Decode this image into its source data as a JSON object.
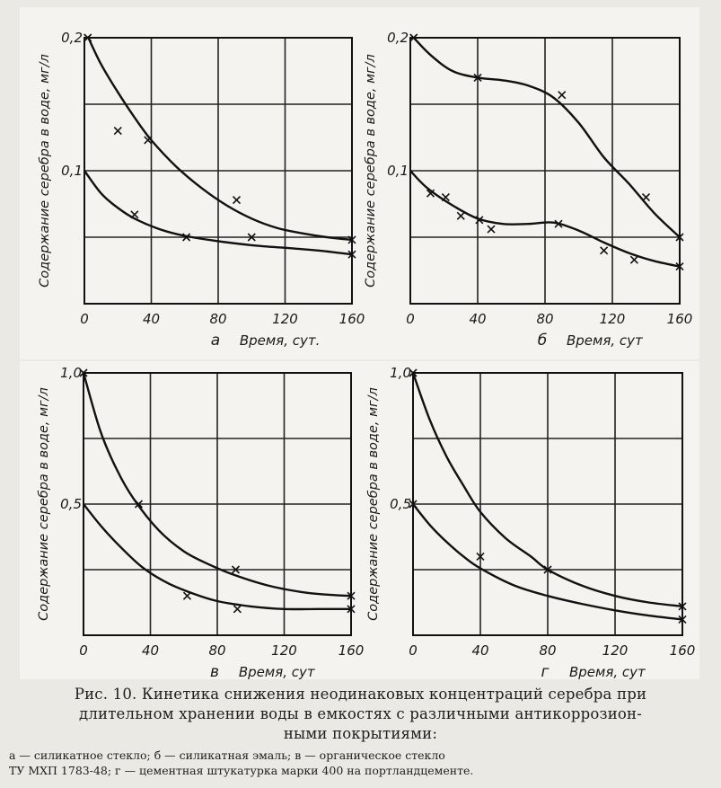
{
  "chart_data": [
    {
      "id": "a",
      "type": "line",
      "panel_letter": "а",
      "xlabel": "Время, сут.",
      "ylabel": "Содержание серебра в воде, мг/л",
      "xlim": [
        0,
        160
      ],
      "ylim": [
        0,
        0.2
      ],
      "xticks": [
        0,
        40,
        80,
        120,
        160
      ],
      "yticks": [
        {
          "v": 0.1,
          "label": "0,1"
        },
        {
          "v": 0.2,
          "label": "0,2"
        }
      ],
      "ygrid": [
        0.05,
        0.1,
        0.15,
        0.2
      ],
      "grid": true,
      "series": [
        {
          "curve": [
            [
              2,
              0.201
            ],
            [
              10,
              0.18
            ],
            [
              20,
              0.159
            ],
            [
              30,
              0.14
            ],
            [
              40,
              0.123
            ],
            [
              55,
              0.103
            ],
            [
              70,
              0.087
            ],
            [
              85,
              0.074
            ],
            [
              100,
              0.064
            ],
            [
              115,
              0.057
            ],
            [
              130,
              0.053
            ],
            [
              145,
              0.05
            ],
            [
              160,
              0.048
            ]
          ],
          "markers": [
            [
              2,
              0.2
            ],
            [
              20,
              0.13
            ],
            [
              38,
              0.123
            ],
            [
              91,
              0.078
            ],
            [
              100,
              0.05
            ],
            [
              160,
              0.048
            ]
          ]
        },
        {
          "curve": [
            [
              0,
              0.1
            ],
            [
              10,
              0.083
            ],
            [
              20,
              0.072
            ],
            [
              30,
              0.064
            ],
            [
              45,
              0.056
            ],
            [
              60,
              0.051
            ],
            [
              80,
              0.047
            ],
            [
              100,
              0.044
            ],
            [
              120,
              0.042
            ],
            [
              140,
              0.04
            ],
            [
              160,
              0.037
            ]
          ],
          "markers": [
            [
              30,
              0.067
            ],
            [
              61,
              0.05
            ],
            [
              160,
              0.037
            ]
          ]
        }
      ]
    },
    {
      "id": "b",
      "type": "line",
      "panel_letter": "б",
      "xlabel": "Время, сут",
      "ylabel": "Содержание серебра в воде, мг/л",
      "xlim": [
        0,
        160
      ],
      "ylim": [
        0,
        0.2
      ],
      "xticks": [
        0,
        40,
        80,
        120,
        160
      ],
      "yticks": [
        {
          "v": 0.1,
          "label": "0,1"
        },
        {
          "v": 0.2,
          "label": "0,2"
        }
      ],
      "ygrid": [
        0.05,
        0.1,
        0.15,
        0.2
      ],
      "grid": true,
      "series": [
        {
          "curve": [
            [
              2,
              0.2
            ],
            [
              12,
              0.187
            ],
            [
              25,
              0.175
            ],
            [
              40,
              0.17
            ],
            [
              55,
              0.168
            ],
            [
              70,
              0.164
            ],
            [
              85,
              0.155
            ],
            [
              100,
              0.136
            ],
            [
              115,
              0.11
            ],
            [
              130,
              0.09
            ],
            [
              145,
              0.068
            ],
            [
              160,
              0.05
            ]
          ],
          "markers": [
            [
              2,
              0.2
            ],
            [
              40,
              0.17
            ],
            [
              90,
              0.157
            ],
            [
              140,
              0.08
            ],
            [
              160,
              0.05
            ]
          ]
        },
        {
          "curve": [
            [
              0,
              0.1
            ],
            [
              10,
              0.087
            ],
            [
              25,
              0.074
            ],
            [
              40,
              0.064
            ],
            [
              55,
              0.06
            ],
            [
              70,
              0.06
            ],
            [
              85,
              0.061
            ],
            [
              100,
              0.055
            ],
            [
              115,
              0.046
            ],
            [
              130,
              0.038
            ],
            [
              145,
              0.032
            ],
            [
              160,
              0.028
            ]
          ],
          "markers": [
            [
              12,
              0.083
            ],
            [
              21,
              0.08
            ],
            [
              30,
              0.066
            ],
            [
              41,
              0.063
            ],
            [
              48,
              0.056
            ],
            [
              88,
              0.06
            ],
            [
              115,
              0.04
            ],
            [
              133,
              0.033
            ],
            [
              160,
              0.028
            ]
          ]
        }
      ]
    },
    {
      "id": "v",
      "type": "line",
      "panel_letter": "в",
      "xlabel": "Время, сут",
      "ylabel": "Содержание серебра в воде, мг/л",
      "xlim": [
        0,
        160
      ],
      "ylim": [
        0,
        1.0
      ],
      "xticks": [
        0,
        40,
        80,
        120,
        160
      ],
      "yticks": [
        {
          "v": 0.5,
          "label": "0,5"
        },
        {
          "v": 1.0,
          "label": "1,0"
        }
      ],
      "ygrid": [
        0.25,
        0.5,
        0.75,
        1.0
      ],
      "grid": true,
      "series": [
        {
          "curve": [
            [
              0,
              1.0
            ],
            [
              10,
              0.78
            ],
            [
              20,
              0.63
            ],
            [
              30,
              0.52
            ],
            [
              45,
              0.4
            ],
            [
              60,
              0.32
            ],
            [
              75,
              0.27
            ],
            [
              90,
              0.23
            ],
            [
              110,
              0.19
            ],
            [
              130,
              0.165
            ],
            [
              145,
              0.155
            ],
            [
              160,
              0.15
            ]
          ],
          "markers": [
            [
              0,
              1.0
            ],
            [
              33,
              0.5
            ],
            [
              91,
              0.25
            ],
            [
              160,
              0.15
            ]
          ]
        },
        {
          "curve": [
            [
              0,
              0.5
            ],
            [
              10,
              0.42
            ],
            [
              20,
              0.35
            ],
            [
              35,
              0.26
            ],
            [
              50,
              0.2
            ],
            [
              65,
              0.16
            ],
            [
              80,
              0.13
            ],
            [
              100,
              0.11
            ],
            [
              120,
              0.1
            ],
            [
              140,
              0.1
            ],
            [
              160,
              0.1
            ]
          ],
          "markers": [
            [
              62,
              0.15
            ],
            [
              92,
              0.1
            ],
            [
              160,
              0.1
            ]
          ]
        }
      ]
    },
    {
      "id": "g",
      "type": "line",
      "panel_letter": "г",
      "xlabel": "Время, сут",
      "ylabel": "Содержание серебра в воде, мг/л",
      "xlim": [
        0,
        160
      ],
      "ylim": [
        0,
        1.0
      ],
      "xticks": [
        0,
        40,
        80,
        120,
        160
      ],
      "yticks": [
        {
          "v": 0.5,
          "label": "0,5"
        },
        {
          "v": 1.0,
          "label": "1,0"
        }
      ],
      "ygrid": [
        0.25,
        0.5,
        0.75,
        1.0
      ],
      "grid": true,
      "series": [
        {
          "curve": [
            [
              0,
              1.0
            ],
            [
              10,
              0.82
            ],
            [
              20,
              0.68
            ],
            [
              30,
              0.57
            ],
            [
              40,
              0.47
            ],
            [
              55,
              0.37
            ],
            [
              70,
              0.3
            ],
            [
              80,
              0.25
            ],
            [
              100,
              0.19
            ],
            [
              120,
              0.15
            ],
            [
              140,
              0.125
            ],
            [
              160,
              0.11
            ]
          ],
          "markers": [
            [
              0,
              1.0
            ],
            [
              80,
              0.25
            ],
            [
              160,
              0.11
            ]
          ]
        },
        {
          "curve": [
            [
              0,
              0.5
            ],
            [
              10,
              0.42
            ],
            [
              20,
              0.355
            ],
            [
              30,
              0.3
            ],
            [
              40,
              0.255
            ],
            [
              60,
              0.19
            ],
            [
              80,
              0.15
            ],
            [
              100,
              0.12
            ],
            [
              120,
              0.095
            ],
            [
              140,
              0.075
            ],
            [
              160,
              0.06
            ]
          ],
          "markers": [
            [
              0,
              0.5
            ],
            [
              40,
              0.3
            ],
            [
              160,
              0.06
            ]
          ]
        }
      ]
    }
  ],
  "caption": {
    "line1": "Рис. 10. Кинетика снижения неодинаковых концентраций серебра при",
    "line2": "длительном хранении воды в емкостях с различными антикоррозион-",
    "line3": "ными покрытиями:"
  },
  "legend": {
    "line1": "а — силикатное стекло; б — силикатная эмаль; в — органическое стекло",
    "line2": "ТУ МХП 1783-48; г — цементная штукатурка марки 400 на портландцементе."
  }
}
